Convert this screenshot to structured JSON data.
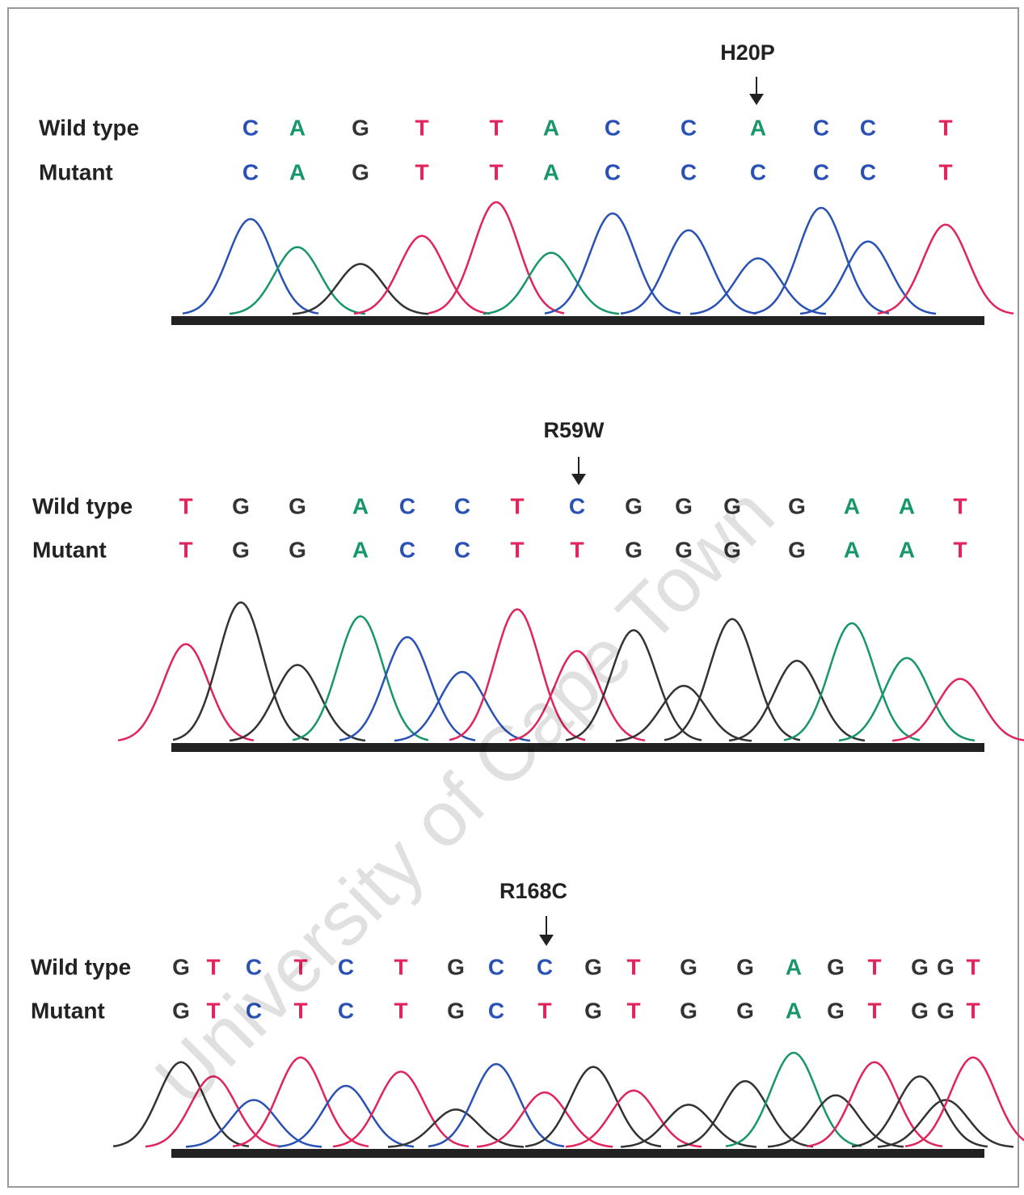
{
  "watermark": "University of Cape Town",
  "panels": [
    {
      "mutation": "H20P",
      "wild_type": {
        "label": "Wild type",
        "bases": [
          "C",
          "A",
          "G",
          "T",
          "T",
          "A",
          "C",
          "C",
          "A",
          "C",
          "C",
          "T"
        ]
      },
      "mutant": {
        "label": "Mutant",
        "bases": [
          "C",
          "A",
          "G",
          "T",
          "T",
          "A",
          "C",
          "C",
          "C",
          "C",
          "C",
          "T"
        ]
      }
    },
    {
      "mutation": "R59W",
      "wild_type": {
        "label": "Wild type",
        "bases": [
          "T",
          "G",
          "G",
          "A",
          "C",
          "C",
          "T",
          "C",
          "G",
          "G",
          "G",
          "G",
          "A",
          "A",
          "T"
        ]
      },
      "mutant": {
        "label": "Mutant",
        "bases": [
          "T",
          "G",
          "G",
          "A",
          "C",
          "C",
          "T",
          "T",
          "G",
          "G",
          "G",
          "G",
          "A",
          "A",
          "T"
        ]
      }
    },
    {
      "mutation": "R168C",
      "wild_type": {
        "label": "Wild type",
        "bases": [
          "G",
          "T",
          "C",
          "T",
          "C",
          "T",
          "G",
          "C",
          "C",
          "G",
          "T",
          "G",
          "G",
          "A",
          "G",
          "T",
          "G",
          "G",
          "T"
        ]
      },
      "mutant": {
        "label": "Mutant",
        "bases": [
          "G",
          "T",
          "C",
          "T",
          "C",
          "T",
          "G",
          "C",
          "T",
          "G",
          "T",
          "G",
          "G",
          "A",
          "G",
          "T",
          "G",
          "G",
          "T"
        ]
      }
    }
  ]
}
